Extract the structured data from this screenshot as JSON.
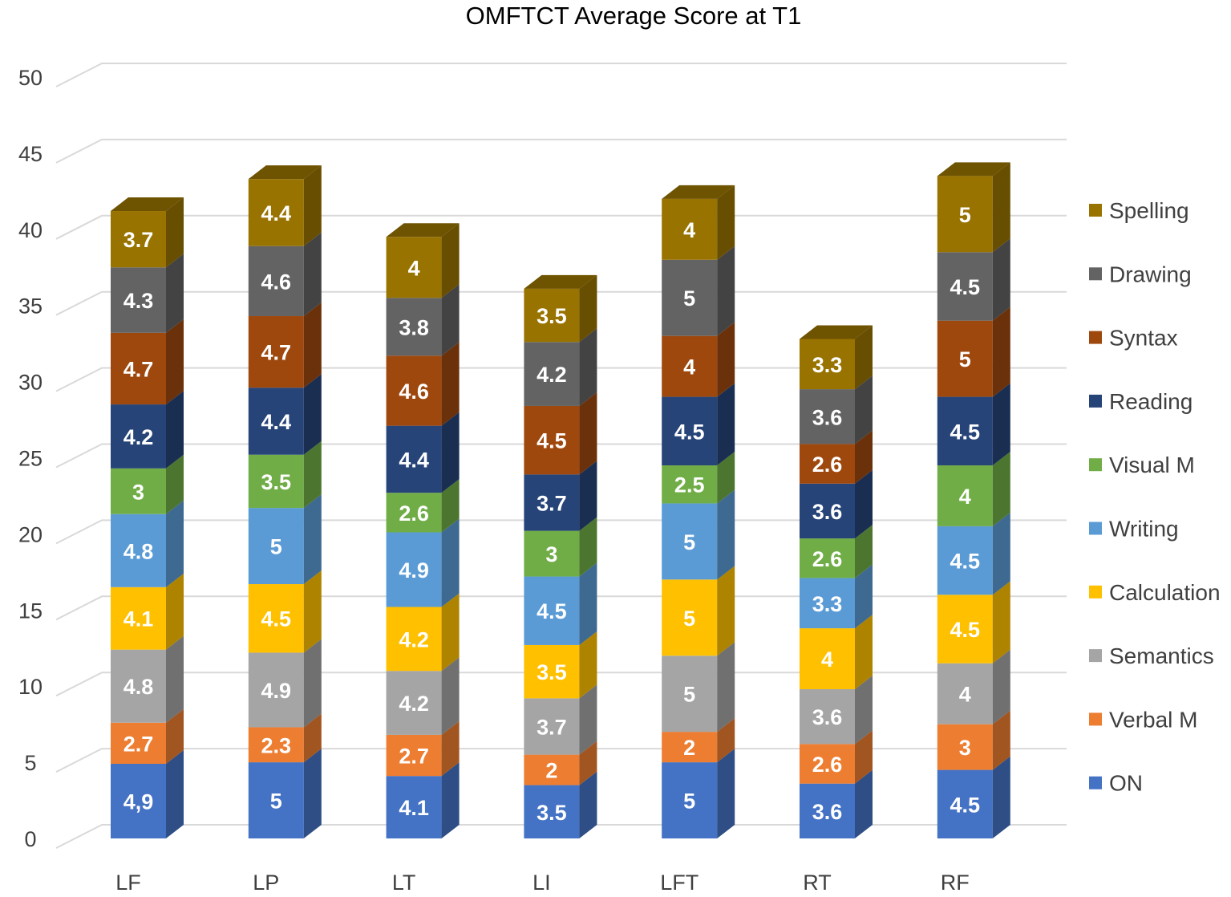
{
  "chart_data": {
    "type": "bar",
    "stacked": true,
    "style": "3d",
    "title": "OMFTCT Average Score at T1",
    "xlabel": "",
    "ylabel": "",
    "ylim": [
      0,
      50
    ],
    "yticks": [
      0,
      5,
      10,
      15,
      20,
      25,
      30,
      35,
      40,
      45,
      50
    ],
    "grid": true,
    "legend_position": "right",
    "categories": [
      "LF",
      "LP",
      "LT",
      "LI",
      "LFT",
      "RT",
      "RF"
    ],
    "series": [
      {
        "name": "ON",
        "color": "#4472C4",
        "values": [
          4.9,
          5,
          4.1,
          3.5,
          5,
          3.6,
          4.5
        ],
        "labels": [
          "4,9",
          "5",
          "4.1",
          "3.5",
          "5",
          "3.6",
          "4.5"
        ]
      },
      {
        "name": "Verbal M",
        "color": "#ED7D31",
        "values": [
          2.7,
          2.3,
          2.7,
          2,
          2,
          2.6,
          3
        ],
        "labels": [
          "2.7",
          "2.3",
          "2.7",
          "2",
          "2",
          "2.6",
          "3"
        ]
      },
      {
        "name": "Semantics",
        "color": "#A5A5A5",
        "values": [
          4.8,
          4.9,
          4.2,
          3.7,
          5,
          3.6,
          4
        ],
        "labels": [
          "4.8",
          "4.9",
          "4.2",
          "3.7",
          "5",
          "3.6",
          "4"
        ]
      },
      {
        "name": "Calculation",
        "color": "#FFC000",
        "values": [
          4.1,
          4.5,
          4.2,
          3.5,
          5,
          4,
          4.5
        ],
        "labels": [
          "4.1",
          "4.5",
          "4.2",
          "3.5",
          "5",
          "4",
          "4.5"
        ]
      },
      {
        "name": "Writing",
        "color": "#5B9BD5",
        "values": [
          4.8,
          5,
          4.9,
          4.5,
          5,
          3.3,
          4.5
        ],
        "labels": [
          "4.8",
          "5",
          "4.9",
          "4.5",
          "5",
          "3.3",
          "4.5"
        ]
      },
      {
        "name": "Visual M",
        "color": "#70AD47",
        "values": [
          3,
          3.5,
          2.6,
          3,
          2.5,
          2.6,
          4
        ],
        "labels": [
          "3",
          "3.5",
          "2.6",
          "3",
          "2.5",
          "2.6",
          "4"
        ]
      },
      {
        "name": "Reading",
        "color": "#264478",
        "values": [
          4.2,
          4.4,
          4.4,
          3.7,
          4.5,
          3.6,
          4.5
        ],
        "labels": [
          "4.2",
          "4.4",
          "4.4",
          "3.7",
          "4.5",
          "3.6",
          "4.5"
        ]
      },
      {
        "name": "Syntax",
        "color": "#9E480E",
        "values": [
          4.7,
          4.7,
          4.6,
          4.5,
          4,
          2.6,
          5
        ],
        "labels": [
          "4.7",
          "4.7",
          "4.6",
          "4.5",
          "4",
          "2.6",
          "5"
        ]
      },
      {
        "name": "Drawing",
        "color": "#636363",
        "values": [
          4.3,
          4.6,
          3.8,
          4.2,
          5,
          3.6,
          4.5
        ],
        "labels": [
          "4.3",
          "4.6",
          "3.8",
          "4.2",
          "5",
          "3.6",
          "4.5"
        ]
      },
      {
        "name": "Spelling",
        "color": "#997300",
        "values": [
          3.7,
          4.4,
          4,
          3.5,
          4,
          3.3,
          5
        ],
        "labels": [
          "3.7",
          "4.4",
          "4",
          "3.5",
          "4",
          "3.3",
          "5"
        ]
      }
    ]
  }
}
